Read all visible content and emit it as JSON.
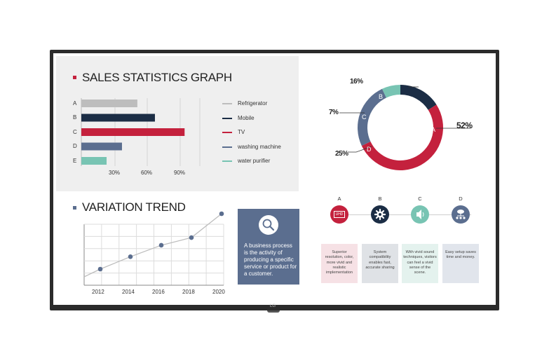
{
  "colors": {
    "red": "#c4213d",
    "navy": "#1b2d45",
    "slate": "#5b6e8f",
    "teal": "#78c4b3",
    "gray": "#bdbdbd"
  },
  "sales": {
    "title": "SALES STATISTICS GRAPH",
    "categories": [
      "A",
      "B",
      "C",
      "D",
      "E"
    ],
    "ticks": [
      "30%",
      "60%",
      "90%"
    ],
    "legend": [
      "Refrigerator",
      "Mobile",
      "TV",
      "washing machine",
      "water purifier"
    ]
  },
  "chart_data": {
    "type": "bar",
    "categories": [
      "A",
      "B",
      "C",
      "D",
      "E"
    ],
    "values": [
      51,
      67,
      94,
      37,
      23
    ],
    "ticks": [
      30,
      60,
      90
    ]
  },
  "variation": {
    "title": "VARIATION TREND",
    "years": [
      "2012",
      "2014",
      "2016",
      "2018",
      "2020"
    ],
    "values": [
      22,
      35,
      47,
      55,
      80
    ]
  },
  "description": {
    "icon": "magnifier-icon",
    "text": "A business process is the activity of producing a specific service or product for a customer."
  },
  "donut": {
    "segments": [
      {
        "letter": "A",
        "percent": "52%",
        "value": 52
      },
      {
        "letter": "D",
        "percent": "25%",
        "value": 25
      },
      {
        "letter": "C",
        "percent": "7%",
        "value": 7
      },
      {
        "letter": "B",
        "percent": "16%",
        "value": 16
      }
    ]
  },
  "features": [
    {
      "letter": "A",
      "icon": "uhd-icon",
      "text": "Superior resolution, color, more vivid and realistic implementation"
    },
    {
      "letter": "B",
      "icon": "gear-icon",
      "text": "System compatibility enables fast, accurate sharing"
    },
    {
      "letter": "C",
      "icon": "speaker-icon",
      "text": "With vivid sound techniques, visitors can feel a vivid sense of the scene."
    },
    {
      "letter": "D",
      "icon": "network-icon",
      "text": "Easy setup saves time and money."
    }
  ],
  "uhd_icon_label": "UHD",
  "brand": "LG"
}
